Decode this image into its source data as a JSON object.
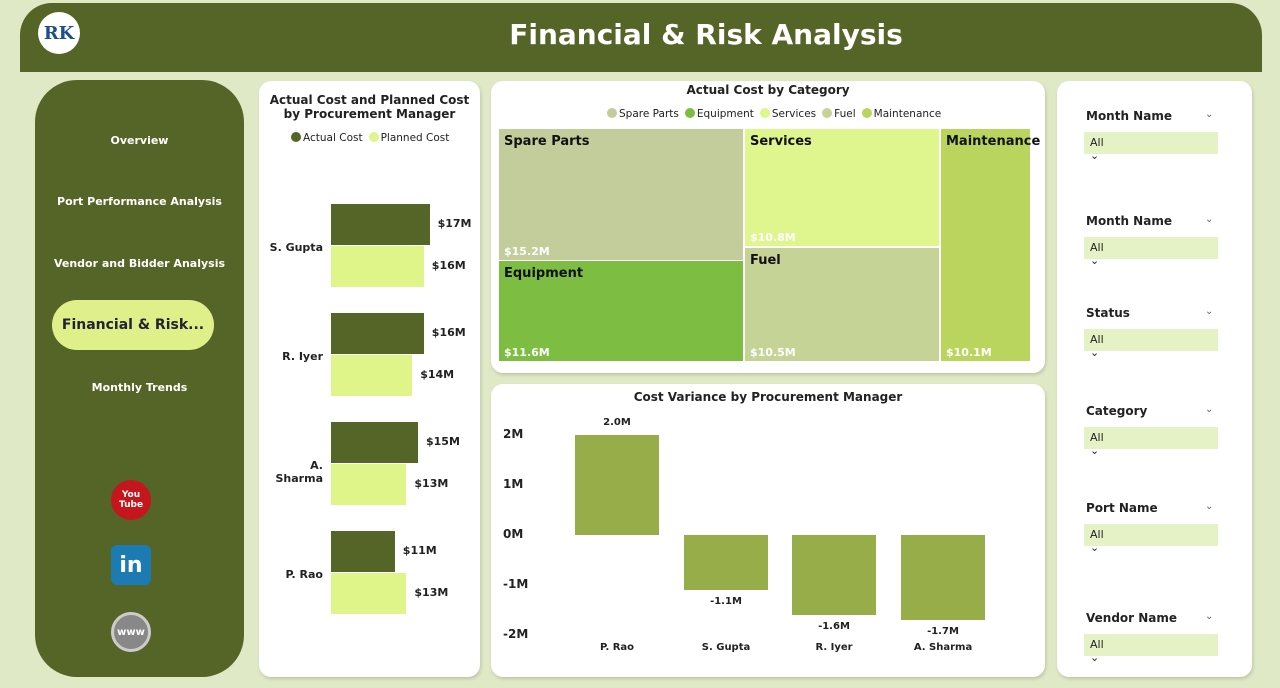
{
  "header": {
    "title": "Financial & Risk Analysis",
    "logo_text": "RK"
  },
  "sidebar": {
    "items": [
      {
        "label": "Overview"
      },
      {
        "label": "Port Performance Analysis"
      },
      {
        "label": "Vendor and Bidder Analysis"
      },
      {
        "label": "Financial & Risk..."
      },
      {
        "label": "Monthly Trends"
      }
    ],
    "active": 3,
    "social": [
      {
        "icon": "youtube-icon",
        "label": "You Tube"
      },
      {
        "icon": "linkedin-icon",
        "label": "in"
      },
      {
        "icon": "www-icon",
        "label": "www"
      }
    ]
  },
  "chart_data": [
    {
      "type": "bar",
      "orientation": "horizontal",
      "title": "Actual Cost and Planned Cost by Procurement Manager",
      "categories": [
        "S. Gupta",
        "R. Iyer",
        "A. Sharma",
        "P. Rao"
      ],
      "series": [
        {
          "name": "Actual Cost",
          "color": "#556427",
          "values": [
            17,
            16,
            15,
            11
          ],
          "labels": [
            "$17M",
            "$16M",
            "$15M",
            "$11M"
          ]
        },
        {
          "name": "Planned Cost",
          "color": "#dff58a",
          "values": [
            16,
            14,
            13,
            13
          ],
          "labels": [
            "$16M",
            "$14M",
            "$13M",
            "$13M"
          ]
        }
      ],
      "unit": "$M",
      "legend": "top"
    },
    {
      "type": "treemap",
      "title": "Actual Cost by Category",
      "legend": "top",
      "items": [
        {
          "name": "Spare Parts",
          "value": 15.2,
          "label": "$15.2M",
          "color": "#c2cd9b"
        },
        {
          "name": "Equipment",
          "value": 11.6,
          "label": "$11.6M",
          "color": "#7cbd42"
        },
        {
          "name": "Services",
          "value": 10.8,
          "label": "$10.8M",
          "color": "#dff58e"
        },
        {
          "name": "Fuel",
          "value": 10.5,
          "label": "$10.5M",
          "color": "#c6d397"
        },
        {
          "name": "Maintenance",
          "value": 10.1,
          "label": "$10.1M",
          "color": "#b9d55d"
        }
      ]
    },
    {
      "type": "bar",
      "title": "Cost Variance by Procurement Manager",
      "categories": [
        "P. Rao",
        "S. Gupta",
        "R. Iyer",
        "A. Sharma"
      ],
      "values": [
        2.0,
        -1.1,
        -1.6,
        -1.7
      ],
      "labels": [
        "2.0M",
        "-1.1M",
        "-1.6M",
        "-1.7M"
      ],
      "yticks": [
        "2M",
        "1M",
        "0M",
        "-1M",
        "-2M"
      ],
      "ylim": [
        -2,
        2
      ],
      "color": "#97ad4a"
    }
  ],
  "filters": [
    {
      "label": "Month Name",
      "value": "All"
    },
    {
      "label": "Month Name",
      "value": "All"
    },
    {
      "label": "Status",
      "value": "All"
    },
    {
      "label": "Category",
      "value": "All"
    },
    {
      "label": "Port Name",
      "value": "All"
    },
    {
      "label": "Vendor Name",
      "value": "All"
    }
  ]
}
